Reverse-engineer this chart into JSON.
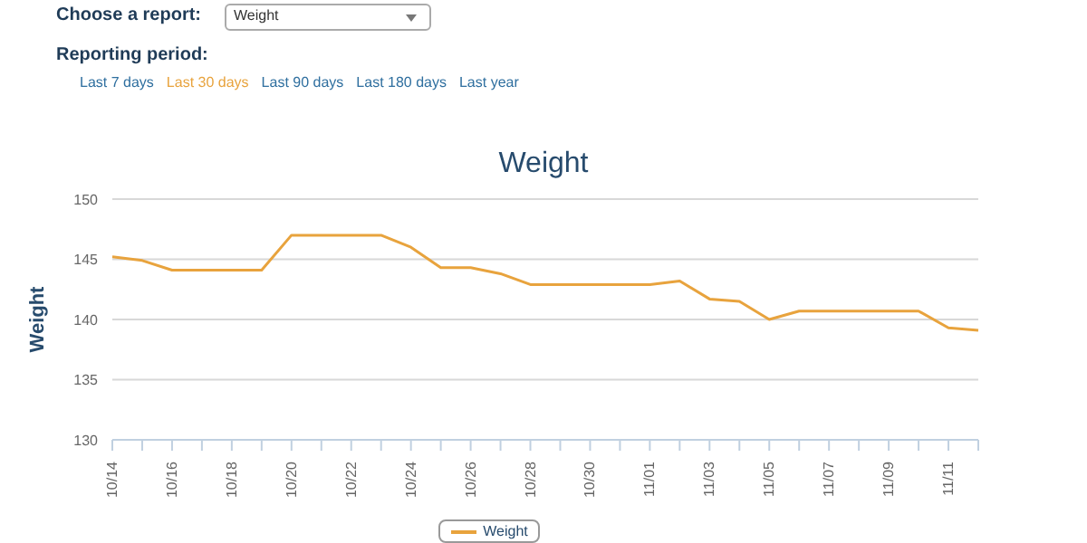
{
  "chart_data": {
    "type": "line",
    "title": "Weight",
    "ylabel": "Weight",
    "annotations": [
      "Choose a report:",
      "Weight",
      "Reporting period:",
      "Last 7 days",
      "Last 30 days",
      "Last 90 days",
      "Last 180 days",
      "Last year"
    ],
    "categories": [
      "10/14",
      null,
      "10/16",
      null,
      "10/18",
      null,
      "10/20",
      null,
      "10/22",
      null,
      "10/24",
      null,
      "10/26",
      null,
      "10/28",
      null,
      "10/30",
      null,
      "11/01",
      null,
      "11/03",
      null,
      "11/05",
      null,
      "11/07",
      null,
      "11/09",
      null,
      "11/11",
      null
    ],
    "series": [
      {
        "name": "Weight",
        "color": "#e8a33d",
        "values": [
          145.2,
          144.9,
          144.1,
          144.1,
          144.1,
          144.1,
          147.0,
          147.0,
          147.0,
          147.0,
          146.0,
          144.3,
          144.3,
          143.8,
          142.9,
          142.9,
          142.9,
          142.9,
          142.9,
          143.2,
          141.7,
          141.5,
          140.0,
          140.7,
          140.7,
          140.7,
          140.7,
          140.7,
          139.3,
          139.1
        ]
      }
    ],
    "ylim": [
      130,
      150
    ],
    "yticks": [
      130,
      135,
      140,
      145,
      150
    ],
    "grid": "y",
    "legend": "bottom",
    "marker": "none",
    "line_style": "solid"
  }
}
